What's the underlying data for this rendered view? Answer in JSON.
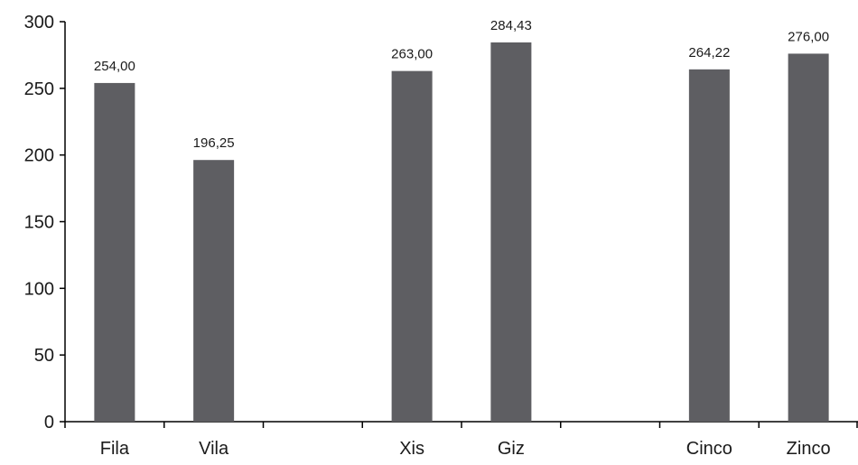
{
  "chart_data": {
    "type": "bar",
    "categories": [
      "Fila",
      "Vila",
      "",
      "Xis",
      "Giz",
      "",
      "Cinco",
      "Zinco"
    ],
    "values": [
      254.0,
      196.25,
      null,
      263.0,
      284.43,
      null,
      264.22,
      276.0
    ],
    "value_labels": [
      "254,00",
      "196,25",
      "",
      "263,00",
      "284,43",
      "",
      "264,22",
      "276,00"
    ],
    "y_ticks": [
      "0",
      "50",
      "100",
      "150",
      "200",
      "250",
      "300"
    ],
    "y_tick_values": [
      0,
      50,
      100,
      150,
      200,
      250,
      300
    ],
    "ylim": [
      0,
      300
    ],
    "title": "",
    "xlabel": "",
    "ylabel": "",
    "grid": false,
    "bar_color": "#5e5e62",
    "axis_color": "#000000"
  }
}
